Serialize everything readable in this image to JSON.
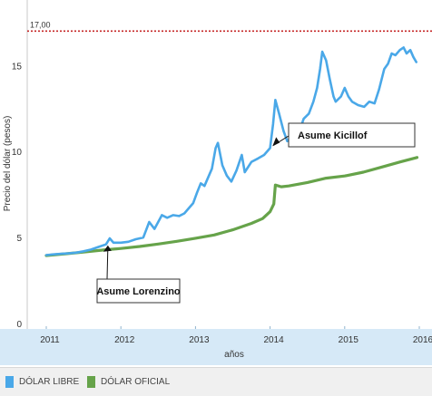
{
  "chart_data": {
    "type": "line",
    "xlabel": "años",
    "ylabel": "Precio del dólar (pesos)",
    "xlim": [
      2011,
      2016
    ],
    "ylim": [
      0,
      17
    ],
    "x_ticks": [
      "2011",
      "2012",
      "2013",
      "2014",
      "2015",
      "2016"
    ],
    "y_ticks": [
      "0",
      "5",
      "10",
      "15"
    ],
    "reference_line": {
      "value": 17,
      "label": "17,00",
      "color": "#c62828",
      "style": "dotted"
    },
    "series": [
      {
        "name": "DÓLAR LIBRE",
        "color": "#4aa8e8",
        "points": [
          [
            2011.0,
            3.98
          ],
          [
            2011.1,
            4.02
          ],
          [
            2011.2,
            4.05
          ],
          [
            2011.3,
            4.08
          ],
          [
            2011.4,
            4.12
          ],
          [
            2011.5,
            4.2
          ],
          [
            2011.6,
            4.3
          ],
          [
            2011.7,
            4.45
          ],
          [
            2011.8,
            4.6
          ],
          [
            2011.85,
            4.95
          ],
          [
            2011.9,
            4.7
          ],
          [
            2012.0,
            4.7
          ],
          [
            2012.1,
            4.75
          ],
          [
            2012.2,
            4.9
          ],
          [
            2012.3,
            5.0
          ],
          [
            2012.38,
            5.9
          ],
          [
            2012.45,
            5.5
          ],
          [
            2012.55,
            6.3
          ],
          [
            2012.62,
            6.15
          ],
          [
            2012.7,
            6.3
          ],
          [
            2012.78,
            6.25
          ],
          [
            2012.85,
            6.4
          ],
          [
            2012.92,
            6.75
          ],
          [
            2012.97,
            7.0
          ],
          [
            2013.02,
            7.6
          ],
          [
            2013.07,
            8.15
          ],
          [
            2013.12,
            8.0
          ],
          [
            2013.18,
            8.6
          ],
          [
            2013.22,
            9.0
          ],
          [
            2013.27,
            10.2
          ],
          [
            2013.3,
            10.5
          ],
          [
            2013.36,
            9.2
          ],
          [
            2013.42,
            8.6
          ],
          [
            2013.48,
            8.25
          ],
          [
            2013.55,
            8.9
          ],
          [
            2013.62,
            9.8
          ],
          [
            2013.66,
            8.8
          ],
          [
            2013.75,
            9.4
          ],
          [
            2013.84,
            9.6
          ],
          [
            2013.92,
            9.8
          ],
          [
            2014.0,
            10.2
          ],
          [
            2014.04,
            11.6
          ],
          [
            2014.07,
            13.0
          ],
          [
            2014.12,
            12.2
          ],
          [
            2014.18,
            11.2
          ],
          [
            2014.23,
            10.6
          ],
          [
            2014.3,
            10.9
          ],
          [
            2014.38,
            11.0
          ],
          [
            2014.45,
            11.9
          ],
          [
            2014.52,
            12.2
          ],
          [
            2014.58,
            12.9
          ],
          [
            2014.63,
            13.7
          ],
          [
            2014.67,
            14.8
          ],
          [
            2014.7,
            15.8
          ],
          [
            2014.75,
            15.3
          ],
          [
            2014.8,
            14.2
          ],
          [
            2014.85,
            13.2
          ],
          [
            2014.88,
            12.9
          ],
          [
            2014.95,
            13.2
          ],
          [
            2015.0,
            13.7
          ],
          [
            2015.05,
            13.2
          ],
          [
            2015.1,
            12.9
          ],
          [
            2015.18,
            12.7
          ],
          [
            2015.26,
            12.6
          ],
          [
            2015.33,
            12.9
          ],
          [
            2015.4,
            12.8
          ],
          [
            2015.46,
            13.6
          ],
          [
            2015.53,
            14.8
          ],
          [
            2015.58,
            15.1
          ],
          [
            2015.63,
            15.7
          ],
          [
            2015.68,
            15.6
          ],
          [
            2015.74,
            15.9
          ],
          [
            2015.79,
            16.05
          ],
          [
            2015.83,
            15.7
          ],
          [
            2015.88,
            15.9
          ],
          [
            2015.92,
            15.5
          ],
          [
            2015.96,
            15.2
          ]
        ]
      },
      {
        "name": "DÓLAR OFICIAL",
        "color": "#66a34a",
        "points": [
          [
            2011.0,
            3.95
          ],
          [
            2011.25,
            4.05
          ],
          [
            2011.5,
            4.15
          ],
          [
            2011.75,
            4.27
          ],
          [
            2012.0,
            4.36
          ],
          [
            2012.25,
            4.48
          ],
          [
            2012.5,
            4.62
          ],
          [
            2012.75,
            4.78
          ],
          [
            2013.0,
            4.96
          ],
          [
            2013.25,
            5.15
          ],
          [
            2013.5,
            5.45
          ],
          [
            2013.75,
            5.82
          ],
          [
            2013.9,
            6.1
          ],
          [
            2014.0,
            6.5
          ],
          [
            2014.05,
            6.95
          ],
          [
            2014.07,
            8.05
          ],
          [
            2014.15,
            7.95
          ],
          [
            2014.25,
            8.0
          ],
          [
            2014.5,
            8.2
          ],
          [
            2014.75,
            8.45
          ],
          [
            2015.0,
            8.58
          ],
          [
            2015.25,
            8.8
          ],
          [
            2015.5,
            9.1
          ],
          [
            2015.75,
            9.4
          ],
          [
            2015.97,
            9.65
          ]
        ]
      }
    ],
    "annotations": [
      {
        "label": "Asume Lorenzino",
        "x": 2011.85,
        "y": 4.7
      },
      {
        "label": "Asume Kicillof",
        "x": 2014.02,
        "y": 10.2
      }
    ],
    "legend_position": "bottom-left",
    "grid": false
  }
}
